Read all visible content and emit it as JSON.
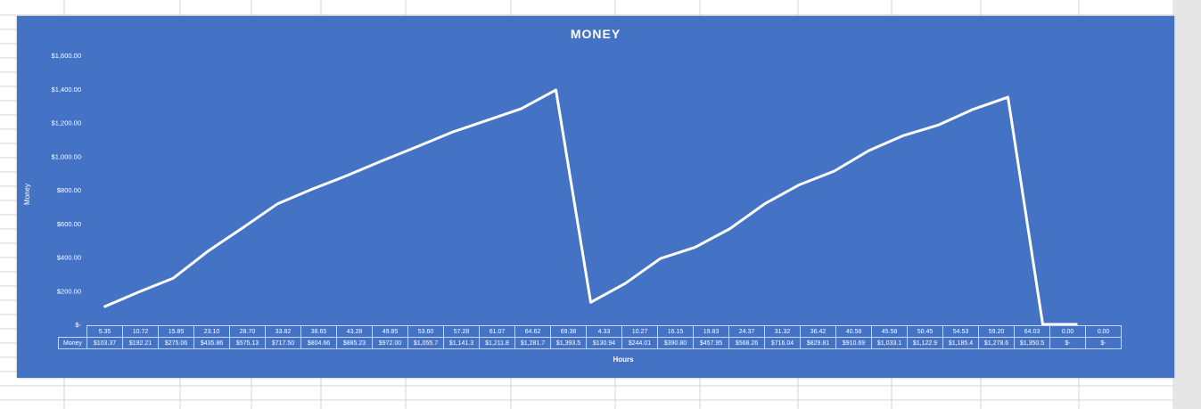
{
  "chart_data": {
    "type": "line",
    "title": "MONEY",
    "xlabel": "Hours",
    "ylabel": "Money",
    "ylim": [
      0,
      1600
    ],
    "y_ticks": [
      "$-",
      "$200.00",
      "$400.00",
      "$600.00",
      "$800.00",
      "$1,000.00",
      "$1,200.00",
      "$1,400.00",
      "$1,600.00"
    ],
    "drop_lines": true,
    "grid": false,
    "categories": [
      "5.35",
      "10.72",
      "15.85",
      "23.10",
      "28.70",
      "33.82",
      "38.65",
      "43.28",
      "49.85",
      "53.60",
      "57.28",
      "61.07",
      "64.62",
      "69.38",
      "4.33",
      "10.27",
      "16.15",
      "19.83",
      "24.37",
      "31.32",
      "36.42",
      "40.58",
      "45.58",
      "50.45",
      "54.53",
      "59.20",
      "64.03",
      "0.00",
      "0.00"
    ],
    "series": [
      {
        "name": "Money",
        "color": "#ffffff",
        "values": [
          103.37,
          192.21,
          275.06,
          435.86,
          575.13,
          717.5,
          804.66,
          885.23,
          972.0,
          1055.7,
          1141.3,
          1211.8,
          1281.7,
          1393.5,
          130.94,
          244.01,
          390.8,
          457.95,
          568.26,
          716.04,
          829.81,
          910.69,
          1033.1,
          1122.9,
          1185.4,
          1278.6,
          1350.5,
          0,
          0
        ],
        "labels": [
          "$103.37",
          "$192.21",
          "$275.06",
          "$435.86",
          "$575.13",
          "$717.50",
          "$804.66",
          "$885.23",
          "$972.00",
          "$1,055.7",
          "$1,141.3",
          "$1,211.8",
          "$1,281.7",
          "$1,393.5",
          "$130.94",
          "$244.01",
          "$390.80",
          "$457.95",
          "$568.26",
          "$716.04",
          "$829.81",
          "$910.69",
          "$1,033.1",
          "$1,122.9",
          "$1,185.4",
          "$1,278.6",
          "$1,350.5",
          "$-",
          "$-"
        ]
      }
    ]
  },
  "colors": {
    "background": "#4472c4",
    "line": "#ffffff",
    "sheet_grid": "#d4d4d4"
  }
}
